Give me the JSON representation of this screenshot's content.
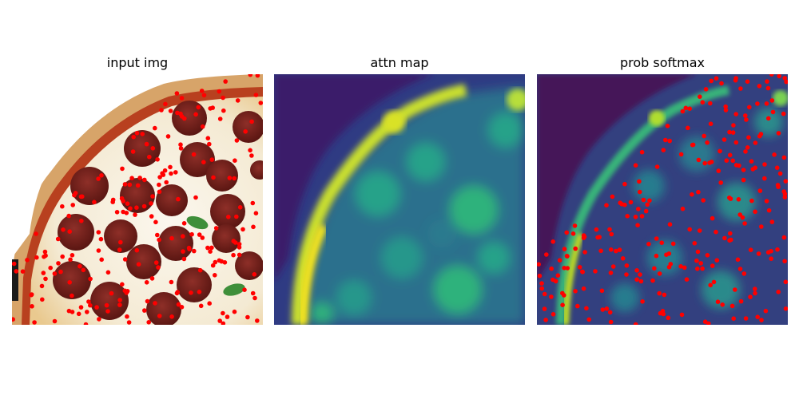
{
  "figure": {
    "panels": [
      {
        "title": "input img",
        "content": "pizza-photo"
      },
      {
        "title": "attn map",
        "content": "heatmap",
        "colormap": "viridis"
      },
      {
        "title": "prob softmax",
        "content": "heatmap-with-points",
        "colormap": "viridis"
      }
    ],
    "point_color": "#ff0000"
  }
}
